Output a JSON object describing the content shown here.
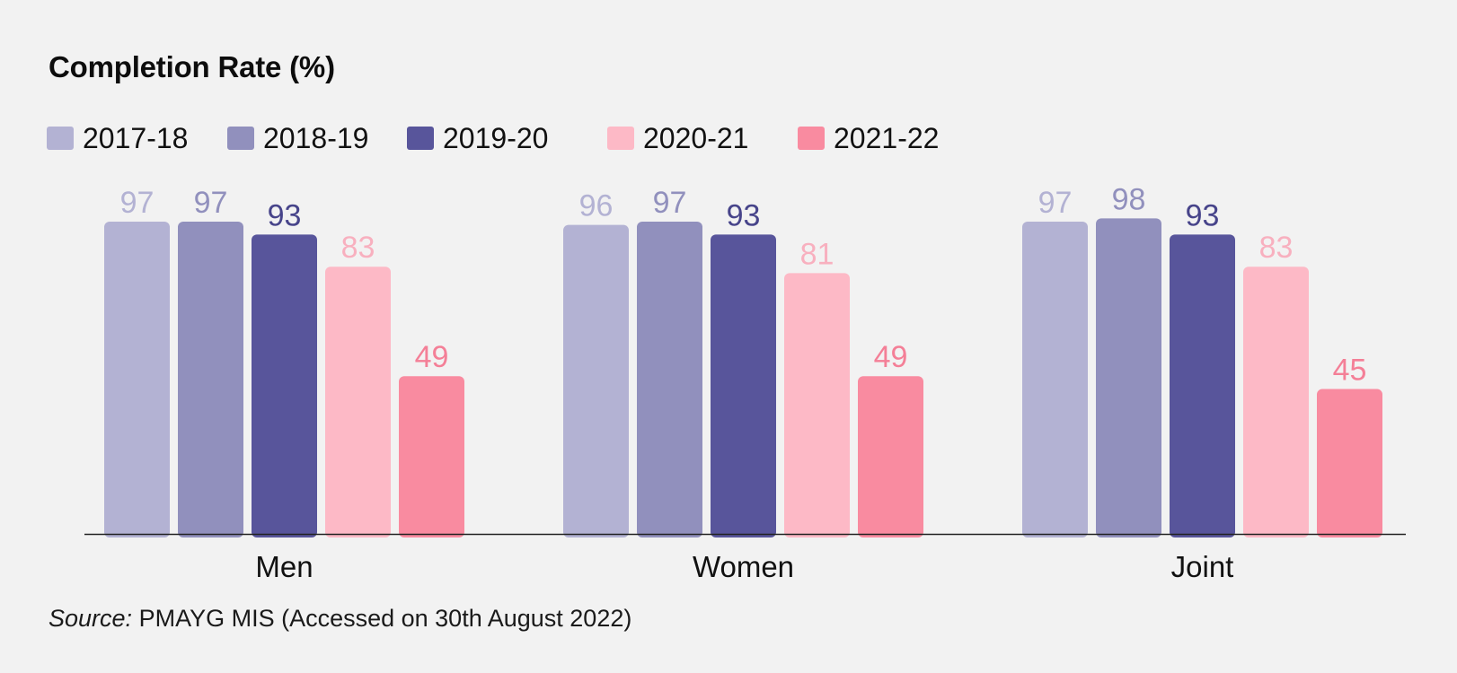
{
  "chart_data": {
    "type": "bar",
    "title": "Completion Rate (%)",
    "xlabel": "",
    "ylabel": "",
    "ylim": [
      0,
      100
    ],
    "grid": false,
    "legend_placement": "top-left",
    "categories": [
      "Men",
      "Women",
      "Joint"
    ],
    "series": [
      {
        "name": "2017-18",
        "color": "#b3b2d3",
        "label_color": "#b3b2d3",
        "values": [
          97,
          96,
          97
        ]
      },
      {
        "name": "2018-19",
        "color": "#9190bd",
        "label_color": "#9190bd",
        "values": [
          97,
          97,
          98
        ]
      },
      {
        "name": "2019-20",
        "color": "#58559b",
        "label_color": "#47448a",
        "values": [
          93,
          93,
          93
        ]
      },
      {
        "name": "2020-21",
        "color": "#fdb9c6",
        "label_color": "#f8b0bf",
        "values": [
          83,
          81,
          83
        ]
      },
      {
        "name": "2021-22",
        "color": "#f98ba0",
        "label_color": "#f47f97",
        "values": [
          49,
          49,
          45
        ]
      }
    ]
  },
  "source": {
    "prefix": "Source:",
    "text": " PMAYG MIS (Accessed on 30th August 2022)"
  },
  "colors": {
    "background": "#f2f2f2",
    "axis": "#222222",
    "text": "#111111"
  }
}
